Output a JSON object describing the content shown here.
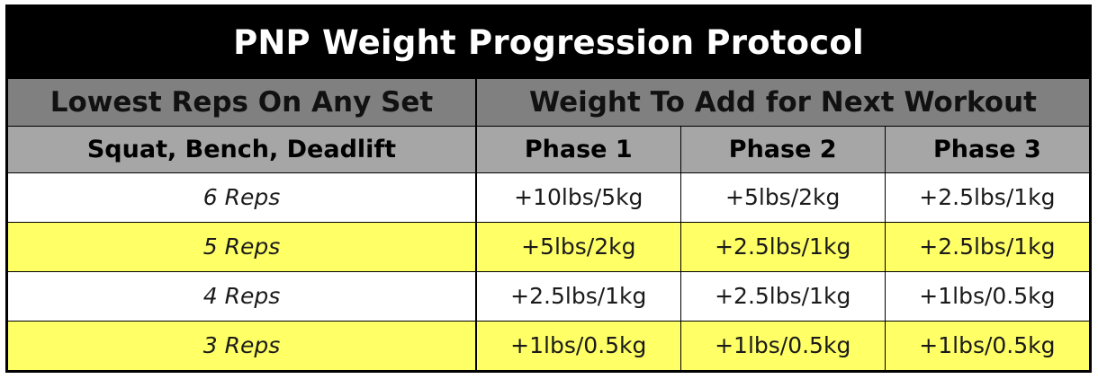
{
  "title": "PNP Weight Progression Protocol",
  "group_headers": {
    "left": "Lowest Reps On Any Set",
    "right": "Weight To Add for Next Workout"
  },
  "column_headers": [
    "Squat, Bench, Deadlift",
    "Phase 1",
    "Phase 2",
    "Phase 3"
  ],
  "rows": [
    {
      "reps": "6 Reps",
      "phase1": "+10lbs/5kg",
      "phase2": "+5lbs/2kg",
      "phase3": "+2.5lbs/1kg",
      "highlight": false
    },
    {
      "reps": "5 Reps",
      "phase1": "+5lbs/2kg",
      "phase2": "+2.5lbs/1kg",
      "phase3": "+2.5lbs/1kg",
      "highlight": true
    },
    {
      "reps": "4 Reps",
      "phase1": "+2.5lbs/1kg",
      "phase2": "+2.5lbs/1kg",
      "phase3": "+1lbs/0.5kg",
      "highlight": false
    },
    {
      "reps": "3 Reps",
      "phase1": "+1lbs/0.5kg",
      "phase2": "+1lbs/0.5kg",
      "phase3": "+1lbs/0.5kg",
      "highlight": true
    }
  ],
  "colors": {
    "title_bg": "#000000",
    "group_header_bg": "#808080",
    "column_header_bg": "#a6a6a6",
    "highlight_row": "#ffff66",
    "plain_row": "#ffffff"
  }
}
